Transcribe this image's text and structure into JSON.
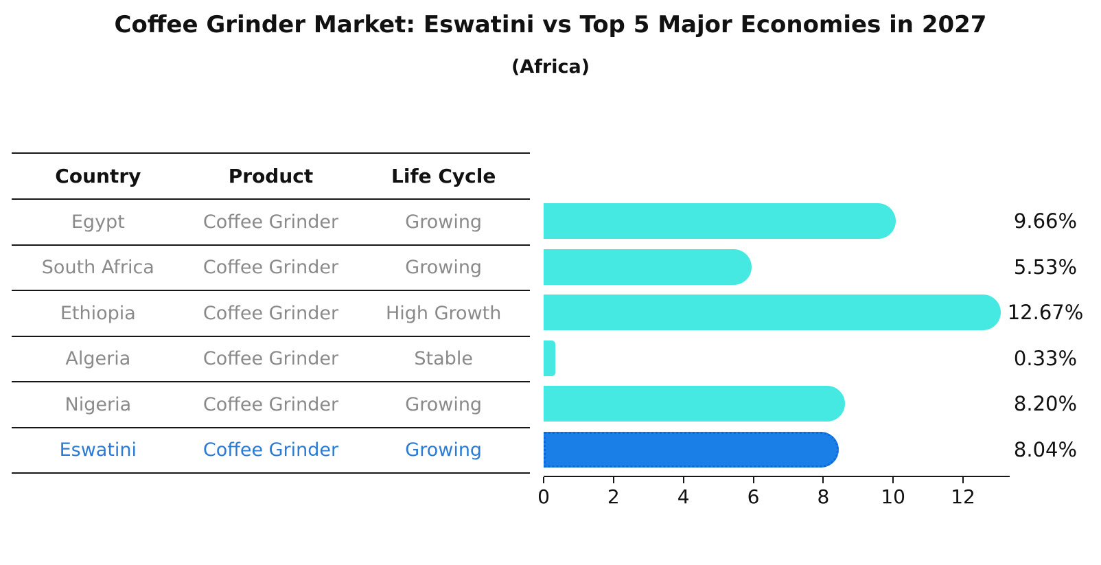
{
  "header": {
    "title": "Coffee Grinder Market: Eswatini vs Top 5 Major Economies in 2027",
    "subtitle": "(Africa)"
  },
  "table": {
    "columns": [
      "Country",
      "Product",
      "Life Cycle"
    ],
    "rows": [
      {
        "country": "Egypt",
        "product": "Coffee Grinder",
        "life_cycle": "Growing"
      },
      {
        "country": "South Africa",
        "product": "Coffee Grinder",
        "life_cycle": "Growing"
      },
      {
        "country": "Ethiopia",
        "product": "Coffee Grinder",
        "life_cycle": "High Growth"
      },
      {
        "country": "Algeria",
        "product": "Coffee Grinder",
        "life_cycle": "Stable"
      },
      {
        "country": "Nigeria",
        "product": "Coffee Grinder",
        "life_cycle": "Growing"
      },
      {
        "country": "Eswatini",
        "product": "Coffee Grinder",
        "life_cycle": "Growing"
      }
    ]
  },
  "chart_data": {
    "type": "bar",
    "orientation": "horizontal",
    "title": "Coffee Grinder Market: Eswatini vs Top 5 Major Economies in 2027",
    "subtitle": "(Africa)",
    "categories": [
      "Egypt",
      "South Africa",
      "Ethiopia",
      "Algeria",
      "Nigeria",
      "Eswatini"
    ],
    "values": [
      9.66,
      5.53,
      12.67,
      0.33,
      8.2,
      8.04
    ],
    "labels": [
      "9.66%",
      "5.53%",
      "12.67%",
      "0.33%",
      "8.20%",
      "8.04%"
    ],
    "xticks": [
      0,
      2,
      4,
      6,
      8,
      10,
      12
    ],
    "xlim": [
      0,
      13.3
    ],
    "grid": false,
    "legend": false,
    "bar_color": "#46e8e2",
    "highlight_index": 5,
    "highlight_color": "#1b7fe8",
    "highlight_border": "#0e68d8"
  },
  "colors": {
    "normal_text": "#8a8a8a",
    "header_text": "#111111",
    "highlight_text": "#2b7bd5",
    "axis": "#161616"
  }
}
